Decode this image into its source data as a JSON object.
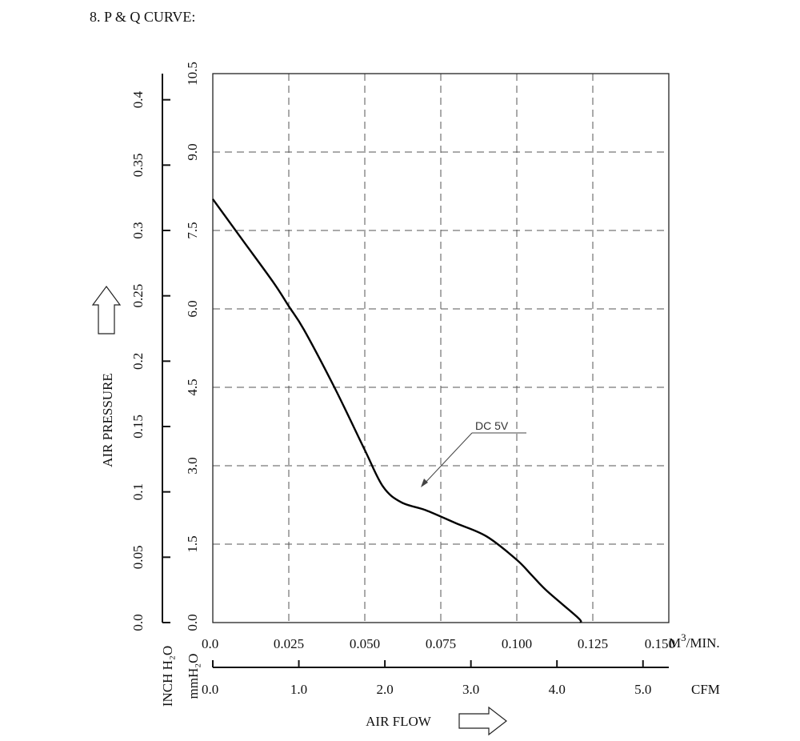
{
  "heading": "8. P & Q CURVE:",
  "chart_data": {
    "type": "line",
    "series": [
      {
        "name": "DC 5V",
        "x": [
          0.0,
          0.01,
          0.02,
          0.025,
          0.03,
          0.04,
          0.05,
          0.056,
          0.062,
          0.07,
          0.08,
          0.09,
          0.1,
          0.105,
          0.11,
          0.12,
          0.121
        ],
        "y": [
          8.1,
          7.3,
          6.5,
          6.05,
          5.6,
          4.5,
          3.3,
          2.6,
          2.3,
          2.15,
          1.9,
          1.65,
          1.2,
          0.9,
          0.6,
          0.1,
          0.0
        ]
      }
    ],
    "x_axis_m3": {
      "label": "M",
      "unit_sup": "3",
      "unit_rest": "/MIN.",
      "ticks": [
        "0.0",
        "0.025",
        "0.050",
        "0.075",
        "0.100",
        "0.125",
        "0.150"
      ],
      "range": [
        0,
        0.15
      ]
    },
    "x_axis_cfm": {
      "label": "CFM",
      "ticks": [
        "0.0",
        "1.0",
        "2.0",
        "3.0",
        "4.0",
        "5.0"
      ],
      "range": [
        0,
        5.3
      ]
    },
    "y_axis_mmh2o": {
      "label": "mmH₂O",
      "ticks": [
        "0.0",
        "1.5",
        "3.0",
        "4.5",
        "6.0",
        "7.5",
        "9.0",
        "10.5"
      ],
      "range": [
        0,
        10.5
      ]
    },
    "y_axis_inch": {
      "label": "INCH H₂O",
      "ticks": [
        "0.0",
        "0.05",
        "0.1",
        "0.15",
        "0.2",
        "0.25",
        "0.3",
        "0.35",
        "0.4"
      ],
      "range": [
        0,
        0.42
      ]
    },
    "xlabel": "AIR FLOW",
    "ylabel": "AIR PRESSURE",
    "annotation": "DC 5V",
    "grid": true
  }
}
